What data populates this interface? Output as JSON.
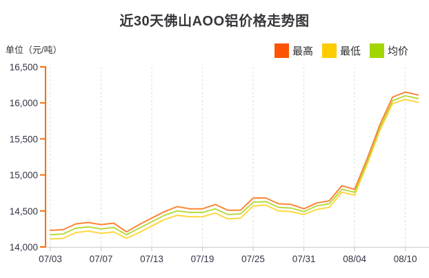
{
  "page_title": "近30天佛山AOO铝价格走势图",
  "chart_data": {
    "type": "line",
    "title": "近30天佛山AOO铝价格走势图",
    "unit_label": "单位（元/吨）",
    "legend_position": "top-right",
    "grid": "vertical-dashed",
    "ylim": [
      14000,
      16500
    ],
    "ytick_step": 500,
    "y_tick_labels": [
      "14,000",
      "14,500",
      "15,000",
      "15,500",
      "16,000",
      "16,500"
    ],
    "x": [
      "07/03",
      "07/04",
      "07/05",
      "07/06",
      "07/07",
      "07/10",
      "07/11",
      "07/12",
      "07/13",
      "07/14",
      "07/17",
      "07/18",
      "07/19",
      "07/20",
      "07/21",
      "07/24",
      "07/25",
      "07/26",
      "07/27",
      "07/28",
      "07/31",
      "08/01",
      "08/02",
      "08/03",
      "08/04",
      "08/07",
      "08/08",
      "08/09",
      "08/10",
      "08/11"
    ],
    "x_tick_labels": [
      "07/03",
      "07/07",
      "07/13",
      "07/19",
      "07/25",
      "07/31",
      "08/04",
      "08/10"
    ],
    "x_tick_indices": [
      0,
      4,
      8,
      12,
      16,
      20,
      24,
      28
    ],
    "series": [
      {
        "name": "最高",
        "swatch_color": "#fc5404",
        "line_color": "#ff8435",
        "values": [
          14230,
          14240,
          14320,
          14340,
          14310,
          14330,
          14210,
          14310,
          14400,
          14490,
          14560,
          14530,
          14530,
          14590,
          14510,
          14510,
          14680,
          14680,
          14600,
          14590,
          14530,
          14610,
          14640,
          14850,
          14800,
          15230,
          15700,
          16080,
          16150,
          16110
        ]
      },
      {
        "name": "最低",
        "swatch_color": "#fccc00",
        "line_color": "#ffd73e",
        "values": [
          14110,
          14120,
          14200,
          14220,
          14190,
          14210,
          14120,
          14200,
          14290,
          14380,
          14440,
          14420,
          14420,
          14470,
          14390,
          14400,
          14570,
          14580,
          14500,
          14490,
          14450,
          14520,
          14550,
          14760,
          14720,
          15150,
          15620,
          15990,
          16050,
          16010
        ]
      },
      {
        "name": "均价",
        "swatch_color": "#a2d601",
        "line_color": "#b8da3f",
        "values": [
          14170,
          14180,
          14260,
          14280,
          14250,
          14270,
          14170,
          14260,
          14350,
          14440,
          14500,
          14480,
          14480,
          14530,
          14450,
          14460,
          14620,
          14630,
          14550,
          14540,
          14490,
          14570,
          14600,
          14800,
          14760,
          15190,
          15660,
          16030,
          16100,
          16060
        ]
      }
    ],
    "colors": {
      "y_axis": "#ff6a00",
      "x_axis": "#cccccc",
      "gridline": "#dcdcdc",
      "tick_label": "#333344",
      "title_text": "#36363a"
    }
  }
}
